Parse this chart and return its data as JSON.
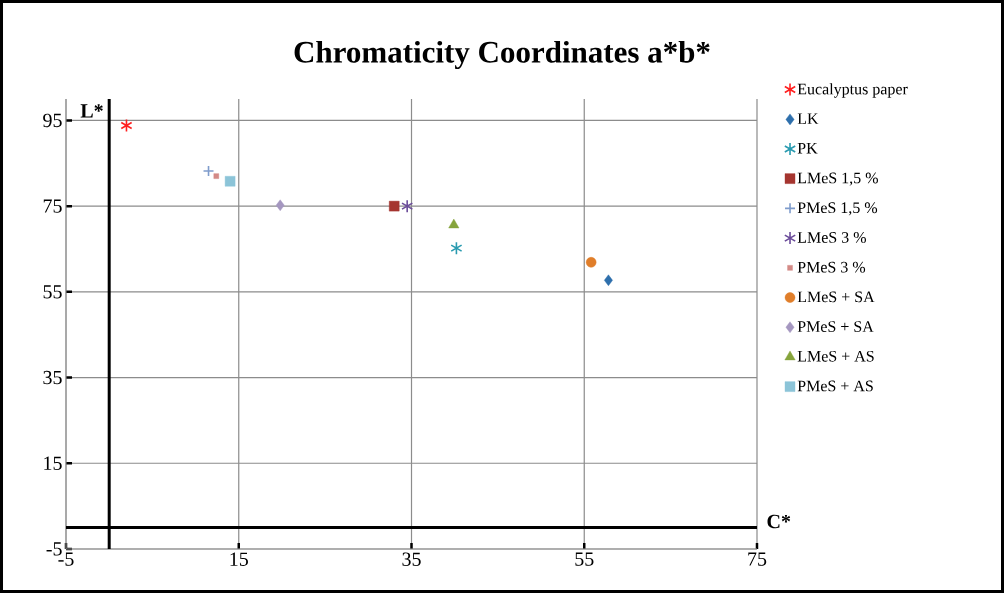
{
  "chart_data": {
    "type": "scatter",
    "title": "Chromaticity Coordinates a*b*",
    "xlabel": "C*",
    "ylabel": "L*",
    "xlim": [
      -5,
      75
    ],
    "ylim": [
      -5,
      100
    ],
    "xticks": [
      -5,
      15,
      35,
      55,
      75
    ],
    "yticks": [
      -5,
      15,
      35,
      55,
      75,
      95
    ],
    "grid": true,
    "legend": "right",
    "series": [
      {
        "name": "Eucalyptus paper",
        "color": "#ff2020",
        "marker": "cross",
        "x": [
          2.0
        ],
        "values": [
          93.8
        ]
      },
      {
        "name": "LK",
        "color": "#2e6fac",
        "marker": "diamond",
        "x": [
          57.8
        ],
        "values": [
          57.7
        ]
      },
      {
        "name": "PK",
        "color": "#2a9bb0",
        "marker": "cross",
        "x": [
          40.2
        ],
        "values": [
          65.2
        ]
      },
      {
        "name": "LMeS 1,5 %",
        "color": "#a5352f",
        "marker": "square",
        "x": [
          33.0
        ],
        "values": [
          75.0
        ]
      },
      {
        "name": "PMeS 1,5 %",
        "color": "#7f9ccc",
        "marker": "plus",
        "x": [
          11.5
        ],
        "values": [
          83.2
        ]
      },
      {
        "name": "LMeS 3 %",
        "color": "#6b4c9a",
        "marker": "cross",
        "x": [
          34.5
        ],
        "values": [
          75.0
        ]
      },
      {
        "name": "PMeS 3 %",
        "color": "#d48a86",
        "x": [
          12.4
        ],
        "values": [
          82.0
        ]
      },
      {
        "name": "LMeS + SA",
        "color": "#e07e2a",
        "marker": "circle",
        "x": [
          55.8
        ],
        "values": [
          61.9
        ]
      },
      {
        "name": "PMeS + SA",
        "color": "#a597c0",
        "marker": "diamond",
        "x": [
          19.8
        ],
        "values": [
          75.2
        ]
      },
      {
        "name": "LMeS + AS",
        "color": "#86a43c",
        "marker": "triangle",
        "x": [
          39.9
        ],
        "values": [
          70.6
        ]
      },
      {
        "name": "PMeS + AS",
        "color": "#8cc4d8",
        "marker": "square",
        "x": [
          14.0
        ],
        "values": [
          80.8
        ]
      }
    ]
  }
}
